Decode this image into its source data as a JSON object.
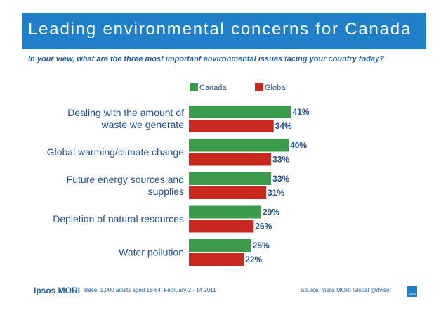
{
  "chart_data": {
    "type": "bar",
    "orientation": "horizontal",
    "title": "Leading environmental concerns for Canada",
    "subtitle": "In your view, what are the three most important environmental issues facing your country today?",
    "categories": [
      [
        "Dealing with the amount of",
        "waste we generate"
      ],
      [
        "Global warming/climate change"
      ],
      [
        "Future energy sources and",
        "supplies"
      ],
      [
        "Depletion of natural resources"
      ],
      [
        "Water pollution"
      ]
    ],
    "series": [
      {
        "name": "Canada",
        "color": "#3c9a4b",
        "values": [
          41,
          40,
          33,
          29,
          25
        ]
      },
      {
        "name": "Global",
        "color": "#c9281f",
        "values": [
          34,
          33,
          31,
          26,
          22
        ]
      }
    ],
    "value_suffix": "%",
    "legend_position": "top",
    "xlim": [
      0,
      100
    ]
  },
  "footer": {
    "logo": "Ipsos MORI",
    "base": "Base: 1,000 adults aged 18-64, February 2 - 14 2011",
    "source": "Source: Ipsos MORI Global @dvisor",
    "corner_logo": "Ipsos"
  }
}
